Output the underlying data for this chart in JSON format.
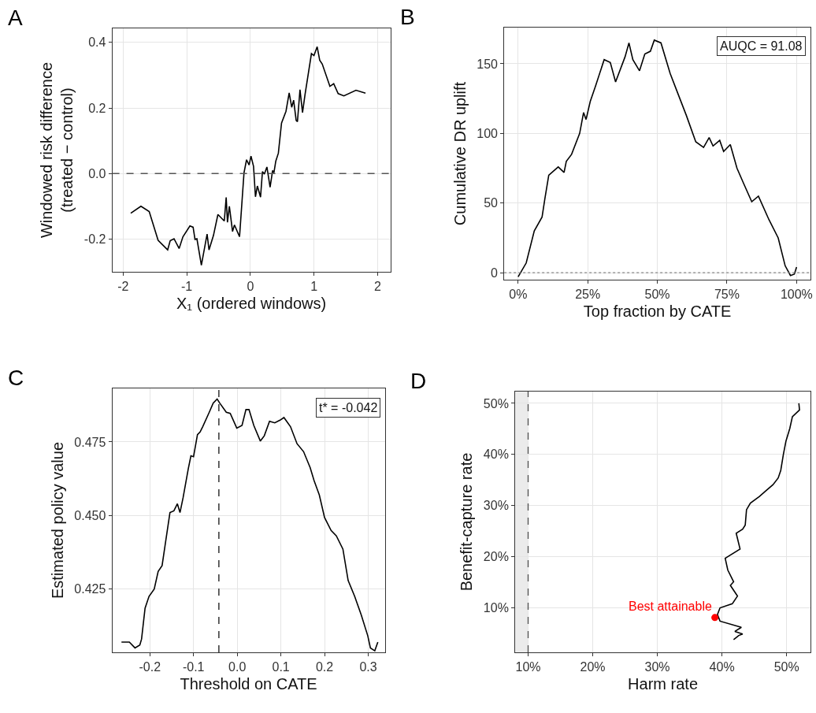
{
  "chart_data": [
    {
      "type": "line",
      "title": "A",
      "xlabel": "X₁ (ordered windows)",
      "ylabel": "Windowed risk difference\n(treated − control)",
      "series": [
        {
          "color": "#000000",
          "x": [
            -1.88,
            -1.72,
            -1.59,
            -1.45,
            -1.3,
            -1.26,
            -1.2,
            -1.12,
            -1.06,
            -0.95,
            -0.9,
            -0.87,
            -0.84,
            -0.77,
            -0.68,
            -0.65,
            -0.58,
            -0.51,
            -0.41,
            -0.38,
            -0.36,
            -0.33,
            -0.28,
            -0.25,
            -0.17,
            -0.1,
            -0.06,
            -0.02,
            0.01,
            0.05,
            0.08,
            0.11,
            0.16,
            0.19,
            0.22,
            0.26,
            0.31,
            0.35,
            0.37,
            0.4,
            0.44,
            0.49,
            0.56,
            0.61,
            0.65,
            0.68,
            0.72,
            0.74,
            0.78,
            0.82,
            0.86,
            0.96,
            1.0,
            1.05,
            1.09,
            1.13,
            1.25,
            1.31,
            1.38,
            1.47,
            1.66,
            1.81
          ],
          "values": [
            -0.121,
            -0.1,
            -0.116,
            -0.204,
            -0.233,
            -0.205,
            -0.199,
            -0.229,
            -0.193,
            -0.16,
            -0.164,
            -0.201,
            -0.199,
            -0.28,
            -0.185,
            -0.233,
            -0.189,
            -0.125,
            -0.145,
            -0.073,
            -0.149,
            -0.1,
            -0.177,
            -0.157,
            -0.193,
            0.002,
            0.042,
            0.026,
            0.053,
            0.022,
            -0.071,
            -0.038,
            -0.072,
            0.006,
            -0.002,
            0.02,
            -0.042,
            0.009,
            0.002,
            0.038,
            0.062,
            0.154,
            0.19,
            0.246,
            0.202,
            0.224,
            0.162,
            0.158,
            0.256,
            0.186,
            0.242,
            0.366,
            0.36,
            0.387,
            0.346,
            0.334,
            0.266,
            0.274,
            0.244,
            0.237,
            0.254,
            0.245
          ]
        }
      ],
      "xlim": [
        -2.17,
        2.2
      ],
      "xticks": [
        -2,
        -1,
        0,
        1,
        2
      ],
      "ylim": [
        -0.3,
        0.443
      ],
      "yticks": [
        -0.2,
        {
          "value": 0,
          "label": "0.0"
        },
        0.2,
        0.4
      ],
      "ref_lines": [
        {
          "axis": "y",
          "value": 0,
          "color": "#555555",
          "line_style": "dashed"
        }
      ],
      "grid": true
    },
    {
      "type": "line",
      "title": "B",
      "xlabel": "Top fraction by CATE",
      "ylabel": "Cumulative DR uplift",
      "annotations": [
        "AUQC = 91.08"
      ],
      "series": [
        {
          "color": "#000000",
          "x": [
            0,
            2.9,
            5.8,
            8.6,
            9.6,
            11.0,
            14.4,
            16.5,
            17.3,
            19.2,
            22.1,
            23.5,
            24.4,
            25.9,
            27.8,
            30.9,
            33.1,
            35.0,
            38.4,
            39.8,
            41.2,
            43.6,
            45.5,
            47.5,
            48.9,
            51.3,
            54.6,
            57.5,
            60.4,
            63.8,
            66.6,
            68.6,
            70.0,
            72.4,
            73.8,
            76.2,
            78.6,
            81.0,
            83.9,
            86.3,
            90.1,
            93.4,
            95.9,
            97.8,
            99.2,
            100
          ],
          "values": [
            -3,
            7,
            30,
            40,
            53,
            70,
            76,
            72,
            80,
            85,
            100,
            115,
            110,
            123,
            134,
            153,
            151,
            137,
            155,
            165,
            153,
            145,
            157,
            159,
            167,
            165,
            143,
            128,
            113,
            94,
            90,
            97,
            91,
            95,
            87,
            92,
            75,
            64,
            51,
            55,
            38,
            25,
            5,
            -2,
            -1,
            4
          ]
        }
      ],
      "xlim": [
        -5,
        105
      ],
      "xticks": [
        {
          "value": 0,
          "label": "0%"
        },
        {
          "value": 25,
          "label": "25%"
        },
        {
          "value": 50,
          "label": "50%"
        },
        {
          "value": 75,
          "label": "75%"
        },
        {
          "value": 100,
          "label": "100%"
        }
      ],
      "ylim": [
        -5,
        176
      ],
      "yticks": [
        0,
        50,
        100,
        150
      ],
      "ref_lines": [
        {
          "axis": "y",
          "value": 0,
          "color": "#888888",
          "line_style": "dotted"
        }
      ],
      "grid": true
    },
    {
      "type": "line",
      "title": "C",
      "xlabel": "Threshold on CATE",
      "ylabel": "Estimated policy value",
      "annotations": [
        "t* = -0.042"
      ],
      "series": [
        {
          "color": "#000000",
          "x": [
            -0.265,
            -0.247,
            -0.234,
            -0.223,
            -0.219,
            -0.211,
            -0.202,
            -0.19,
            -0.181,
            -0.172,
            -0.165,
            -0.154,
            -0.145,
            -0.137,
            -0.131,
            -0.124,
            -0.112,
            -0.106,
            -0.1,
            -0.091,
            -0.085,
            -0.079,
            -0.064,
            -0.055,
            -0.046,
            -0.04,
            -0.025,
            -0.016,
            -0.001,
            0.011,
            0.02,
            0.027,
            0.038,
            0.053,
            0.062,
            0.074,
            0.086,
            0.098,
            0.107,
            0.122,
            0.137,
            0.152,
            0.167,
            0.176,
            0.188,
            0.2,
            0.215,
            0.227,
            0.242,
            0.254,
            0.269,
            0.284,
            0.299,
            0.305,
            0.315,
            0.322
          ],
          "values": [
            0.407,
            0.407,
            0.405,
            0.406,
            0.408,
            0.4185,
            0.4225,
            0.425,
            0.431,
            0.433,
            0.44,
            0.451,
            0.4516,
            0.454,
            0.451,
            0.456,
            0.4659,
            0.4703,
            0.47,
            0.4775,
            0.4784,
            0.4802,
            0.4851,
            0.4882,
            0.4896,
            0.4882,
            0.4851,
            0.4847,
            0.4797,
            0.4806,
            0.486,
            0.486,
            0.4806,
            0.4753,
            0.4771,
            0.482,
            0.4815,
            0.4824,
            0.4833,
            0.4802,
            0.4744,
            0.4717,
            0.4663,
            0.4619,
            0.457,
            0.4493,
            0.4449,
            0.4431,
            0.4386,
            0.4279,
            0.4225,
            0.4162,
            0.4091,
            0.405,
            0.404,
            0.407
          ]
        }
      ],
      "xlim": [
        -0.286,
        0.338
      ],
      "xticks": [
        -0.2,
        -0.1,
        {
          "value": 0,
          "label": "0.0"
        },
        0.1,
        0.2,
        0.3
      ],
      "ylim": [
        0.4035,
        0.4932
      ],
      "yticks": [
        0.425,
        {
          "value": 0.45,
          "label": "0.450"
        },
        0.475
      ],
      "ref_lines": [
        {
          "axis": "x",
          "value": -0.042,
          "color": "#222222",
          "line_style": "dashed"
        }
      ],
      "grid": true
    },
    {
      "type": "line",
      "title": "D",
      "xlabel": "Harm rate",
      "ylabel": "Benefit-capture rate",
      "annotations": [
        {
          "text": "Best attainable",
          "x": 38.9,
          "y": 8.1
        }
      ],
      "series": [
        {
          "color": "#000000",
          "x": [
            51.9,
            52.0,
            50.9,
            50.5,
            49.9,
            49.5,
            49.1,
            48.7,
            47.9,
            46.7,
            45.8,
            44.4,
            43.8,
            43.6,
            43.2,
            42.2,
            42.8,
            40.5,
            40.9,
            41.8,
            41.3,
            42.4,
            41.6,
            39.7,
            39.3,
            39.7,
            43.0,
            42.0,
            43.2,
            42.6,
            41.8
          ],
          "values": [
            50.0,
            48.7,
            47.4,
            45.1,
            42.6,
            40.0,
            36.9,
            35.4,
            34.1,
            32.8,
            31.8,
            30.5,
            29.2,
            26.2,
            25.4,
            24.6,
            21.5,
            19.7,
            17.4,
            15.1,
            14.4,
            12.3,
            10.8,
            10.0,
            8.7,
            7.4,
            6.2,
            5.4,
            4.9,
            4.6,
            3.8
          ]
        },
        {
          "type": "scatter",
          "color": "#ff0000",
          "x": [
            38.9
          ],
          "values": [
            8.1
          ]
        }
      ],
      "xlim": [
        8,
        53.7
      ],
      "xticks": [
        {
          "value": 10,
          "label": "10%"
        },
        {
          "value": 20,
          "label": "20%"
        },
        {
          "value": 30,
          "label": "30%"
        },
        {
          "value": 40,
          "label": "40%"
        },
        {
          "value": 50,
          "label": "50%"
        }
      ],
      "ylim": [
        1.3,
        52.3
      ],
      "yticks": [
        {
          "value": 10,
          "label": "10%"
        },
        {
          "value": 20,
          "label": "20%"
        },
        {
          "value": 30,
          "label": "30%"
        },
        {
          "value": 40,
          "label": "40%"
        },
        {
          "value": 50,
          "label": "50%"
        }
      ],
      "bands": [
        {
          "axis": "x",
          "from": 8,
          "to": 10,
          "color": "#ebebeb"
        }
      ],
      "ref_lines": [
        {
          "axis": "x",
          "value": 10,
          "color": "#555555",
          "line_style": "dashed"
        }
      ],
      "grid": true
    }
  ]
}
